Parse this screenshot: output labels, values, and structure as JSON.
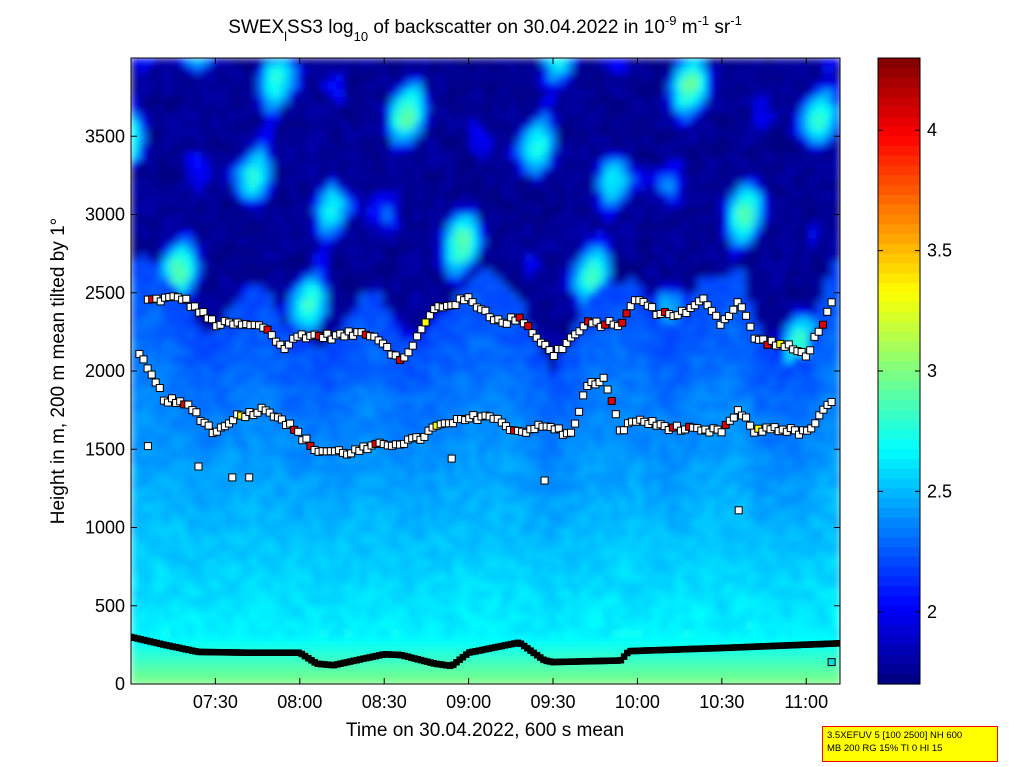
{
  "chart_data": {
    "type": "heatmap",
    "title": {
      "p1": "SWEX",
      "sub1": "l",
      "p2": "SS3 log",
      "sub2": "10",
      "p3": " of backscatter on 30.04.2022 in 10",
      "sup1": "-9",
      "p4": " m",
      "sup2": "-1",
      "p5": " sr",
      "sup3": "-1"
    },
    "xlabel": "Time on 30.04.2022, 600 s mean",
    "ylabel": "Height in m, 200 m mean tilted by 1°",
    "x_range_hours": [
      7.0,
      11.2
    ],
    "y_range_m": [
      0,
      4000
    ],
    "x_ticks": [
      {
        "value": 7.5,
        "label": "07:30"
      },
      {
        "value": 8.0,
        "label": "08:00"
      },
      {
        "value": 8.5,
        "label": "08:30"
      },
      {
        "value": 9.0,
        "label": "09:00"
      },
      {
        "value": 9.5,
        "label": "09:30"
      },
      {
        "value": 10.0,
        "label": "10:00"
      },
      {
        "value": 10.5,
        "label": "10:30"
      },
      {
        "value": 11.0,
        "label": "11:00"
      }
    ],
    "y_ticks": [
      0,
      500,
      1000,
      1500,
      2000,
      2500,
      3000,
      3500
    ],
    "colorbar": {
      "range": [
        1.7,
        4.3
      ],
      "ticks": [
        {
          "value": 2.0,
          "label": "2"
        },
        {
          "value": 2.5,
          "label": "2.5"
        },
        {
          "value": 3.0,
          "label": "3"
        },
        {
          "value": 3.5,
          "label": "3.5"
        },
        {
          "value": 4.0,
          "label": "4"
        }
      ],
      "colormap": "jet"
    },
    "surface_layer_height": {
      "x": [
        7.0,
        7.2,
        7.4,
        7.7,
        8.0,
        8.1,
        8.2,
        8.5,
        8.6,
        8.8,
        8.9,
        9.0,
        9.3,
        9.45,
        9.5,
        9.9,
        9.95,
        10.5,
        11.2
      ],
      "y": [
        300,
        250,
        205,
        200,
        200,
        130,
        120,
        190,
        185,
        130,
        115,
        200,
        265,
        150,
        140,
        150,
        210,
        230,
        260
      ]
    },
    "layer_markers": {
      "upper_layer_height": {
        "x": [
          7.1,
          7.3,
          7.5,
          7.6,
          7.8,
          7.9,
          8.0,
          8.2,
          8.4,
          8.5,
          8.6,
          8.8,
          9.0,
          9.2,
          9.3,
          9.5,
          9.7,
          9.9,
          10.0,
          10.1,
          10.2,
          10.3,
          10.4,
          10.5,
          10.6,
          10.7,
          10.8,
          10.9,
          11.0,
          11.15
        ],
        "y": [
          2450,
          2470,
          2300,
          2300,
          2280,
          2140,
          2230,
          2220,
          2250,
          2180,
          2050,
          2400,
          2460,
          2300,
          2350,
          2100,
          2300,
          2300,
          2470,
          2380,
          2360,
          2380,
          2460,
          2300,
          2450,
          2200,
          2180,
          2150,
          2100,
          2420
        ]
      },
      "middle_layer_height": {
        "x": [
          7.05,
          7.2,
          7.35,
          7.5,
          7.6,
          7.8,
          7.9,
          8.1,
          8.3,
          8.5,
          8.7,
          8.8,
          9.1,
          9.3,
          9.4,
          9.5,
          9.6,
          9.7,
          9.8,
          9.9,
          10.0,
          10.1,
          10.2,
          10.4,
          10.5,
          10.6,
          10.7,
          10.8,
          11.0,
          11.15
        ],
        "y": [
          2100,
          1820,
          1770,
          1600,
          1700,
          1760,
          1690,
          1490,
          1480,
          1530,
          1560,
          1640,
          1720,
          1610,
          1640,
          1640,
          1580,
          1900,
          1950,
          1620,
          1690,
          1660,
          1640,
          1610,
          1620,
          1740,
          1610,
          1640,
          1600,
          1800
        ]
      },
      "isolated_points": {
        "x": [
          7.1,
          7.4,
          7.6,
          7.7,
          8.9,
          9.45,
          10.6,
          11.15
        ],
        "y": [
          1520,
          1390,
          1320,
          1320,
          1440,
          1300,
          1110,
          140
        ]
      }
    }
  },
  "info_box": {
    "line1": "3.5XEFUV 5 [100 2500] NH 600",
    "line2": "MB 200 RG 15% TI 0 HI 15"
  },
  "colors": {
    "marker_fill_white": "#ffffff",
    "marker_fill_red": "#dd0000",
    "marker_fill_yellow": "#ffff00",
    "marker_fill_cyan": "#00dddd",
    "marker_fill_magenta": "#ff00ff",
    "marker_edge": "#000000",
    "info_box_bg": "#ffff00",
    "info_box_border": "#ff0000"
  }
}
